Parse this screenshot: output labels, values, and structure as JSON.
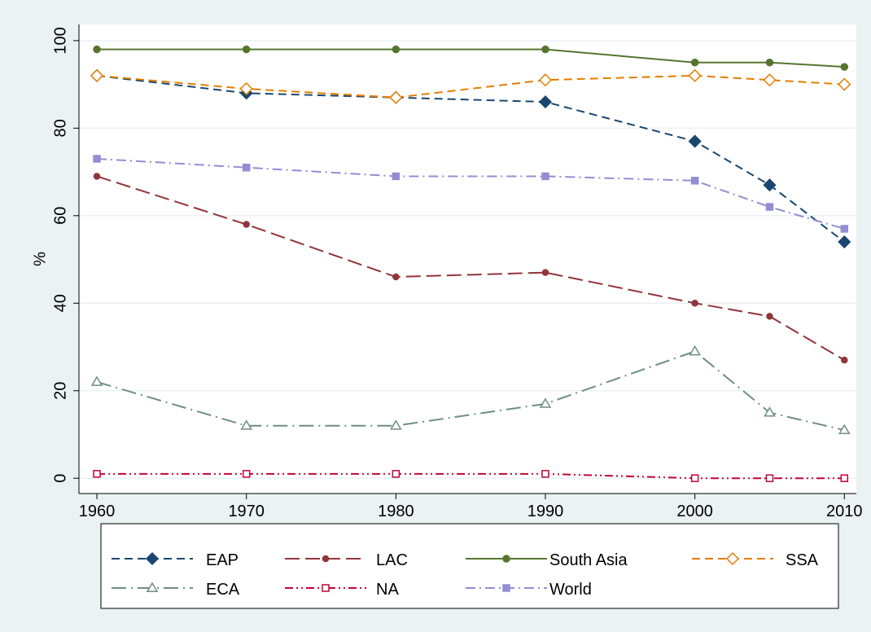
{
  "chart_data": {
    "type": "line",
    "y_label": "%",
    "x": [
      1960,
      1970,
      1980,
      1990,
      2000,
      2005,
      2010
    ],
    "xlim": [
      1958.8,
      2010.8
    ],
    "xticks": [
      1960,
      1970,
      1980,
      1990,
      2000,
      2010
    ],
    "ylim": [
      -3.5,
      103.7
    ],
    "yticks": [
      0,
      20,
      40,
      60,
      80,
      100
    ],
    "grid": true,
    "series": [
      {
        "name": "EAP",
        "color": "#1a476f",
        "marker": "diamond",
        "hollow": false,
        "line_style": "dash",
        "values": [
          92,
          88,
          87,
          86,
          77,
          67,
          54
        ]
      },
      {
        "name": "LAC",
        "color": "#90353b",
        "marker": "circle-small",
        "hollow": false,
        "line_style": "longdash",
        "values": [
          69,
          58,
          46,
          47,
          40,
          37,
          27
        ]
      },
      {
        "name": "South Asia",
        "color": "#55752f",
        "marker": "circle",
        "hollow": false,
        "line_style": "solid",
        "values": [
          98,
          98,
          98,
          98,
          95,
          95,
          94
        ]
      },
      {
        "name": "SSA",
        "color": "#e37e00",
        "marker": "diamond",
        "hollow": true,
        "line_style": "dash",
        "values": [
          92,
          89,
          87,
          91,
          92,
          91,
          90
        ]
      },
      {
        "name": "ECA",
        "color": "#6e8e84",
        "marker": "triangle",
        "hollow": true,
        "line_style": "longdash_dot",
        "values": [
          22,
          12,
          12,
          17,
          29,
          15,
          11
        ]
      },
      {
        "name": "NA",
        "color": "#c10534",
        "marker": "square",
        "hollow": true,
        "line_style": "dash_dot_dot",
        "values": [
          1,
          1,
          1,
          1,
          0,
          0,
          0
        ]
      },
      {
        "name": "World",
        "color": "#938dd2",
        "marker": "square",
        "hollow": false,
        "line_style": "dash_dot",
        "values": [
          73,
          71,
          69,
          69,
          68,
          62,
          57
        ]
      }
    ]
  }
}
